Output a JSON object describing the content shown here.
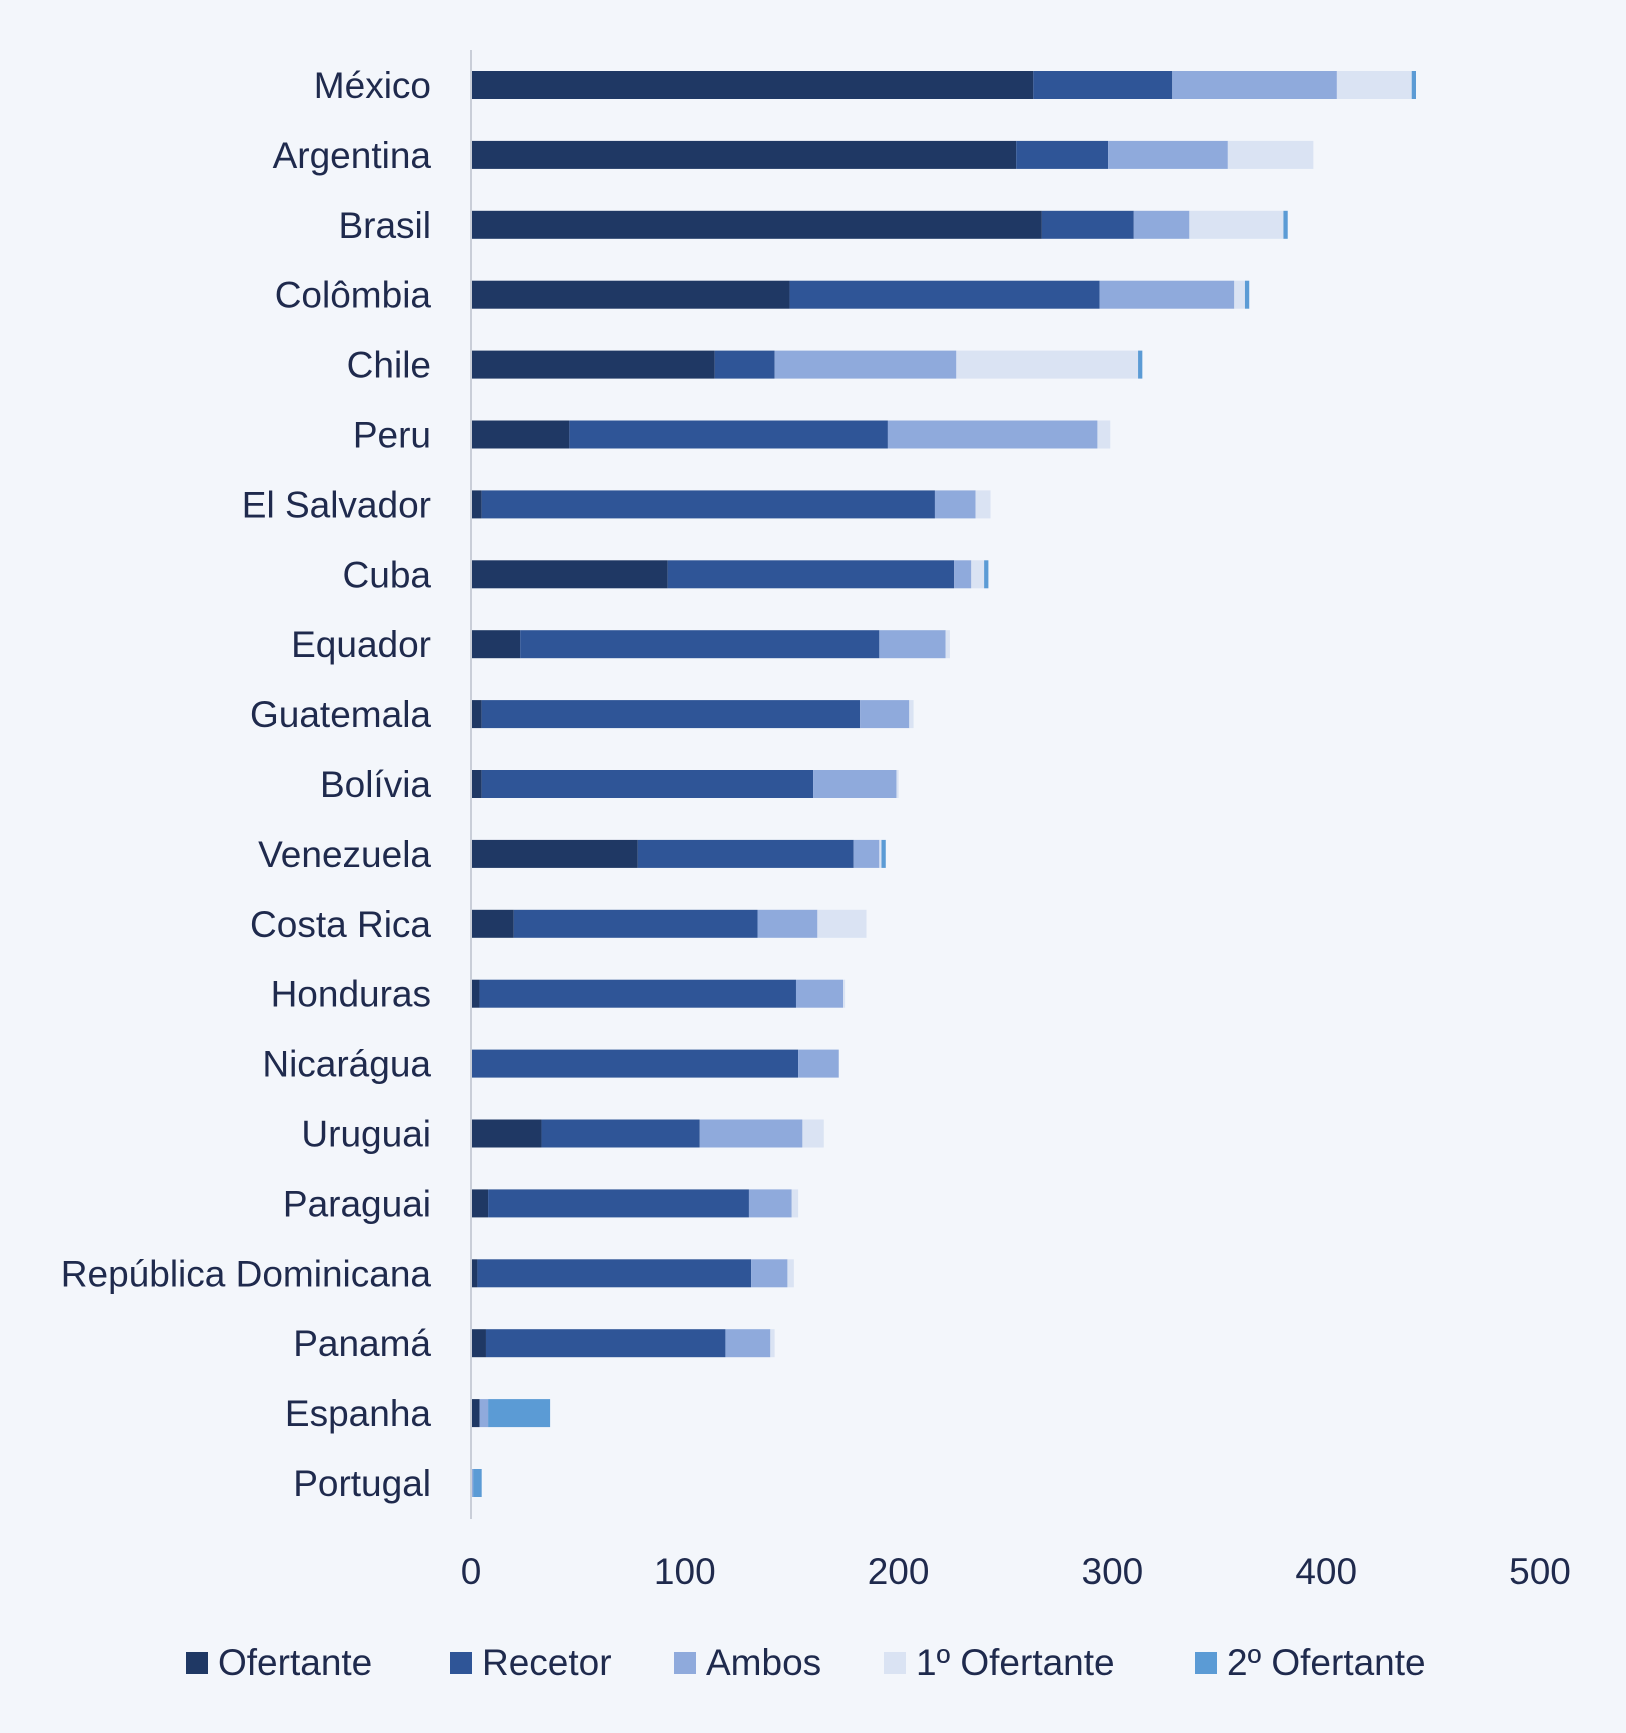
{
  "chart_data": {
    "type": "bar",
    "orientation": "horizontal",
    "stacked": true,
    "title": "",
    "xlabel": "",
    "ylabel": "",
    "xlim": [
      0,
      500
    ],
    "xticks": [
      0,
      100,
      200,
      300,
      400,
      500
    ],
    "grid": false,
    "legend_position": "bottom",
    "categories": [
      "México",
      "Argentina",
      "Brasil",
      "Colômbia",
      "Chile",
      "Peru",
      "El Salvador",
      "Cuba",
      "Equador",
      "Guatemala",
      "Bolívia",
      "Venezuela",
      "Costa Rica",
      "Honduras",
      "Nicarágua",
      "Uruguai",
      "Paraguai",
      "República Dominicana",
      "Panamá",
      "Espanha",
      "Portugal"
    ],
    "series": [
      {
        "name": "Ofertante",
        "color": "#1f3864",
        "values": [
          263,
          255,
          267,
          149,
          114,
          46,
          5,
          92,
          23,
          5,
          5,
          78,
          20,
          4,
          0,
          33,
          8,
          3,
          7,
          4,
          0
        ]
      },
      {
        "name": "Recetor",
        "color": "#2f5597",
        "values": [
          65,
          43,
          43,
          145,
          28,
          149,
          212,
          134,
          168,
          177,
          155,
          101,
          114,
          148,
          153,
          74,
          122,
          128,
          112,
          0,
          0
        ]
      },
      {
        "name": "Ambos",
        "color": "#8faadc",
        "values": [
          77,
          56,
          26,
          63,
          85,
          98,
          19,
          8,
          31,
          23,
          39,
          12,
          28,
          22,
          19,
          48,
          20,
          17,
          21,
          4,
          1
        ]
      },
      {
        "name": "1º Ofertante",
        "color": "#dae3f3",
        "values": [
          35,
          40,
          44,
          5,
          85,
          6,
          7,
          6,
          2,
          2,
          1,
          1,
          23,
          1,
          0,
          10,
          3,
          3,
          2,
          0,
          0
        ]
      },
      {
        "name": "2º Ofertante",
        "color": "#5b9bd5",
        "values": [
          2,
          0,
          2,
          2,
          2,
          0,
          0,
          2,
          0,
          0,
          0,
          2,
          0,
          0,
          0,
          0,
          0,
          0,
          0,
          29,
          4
        ]
      }
    ]
  }
}
